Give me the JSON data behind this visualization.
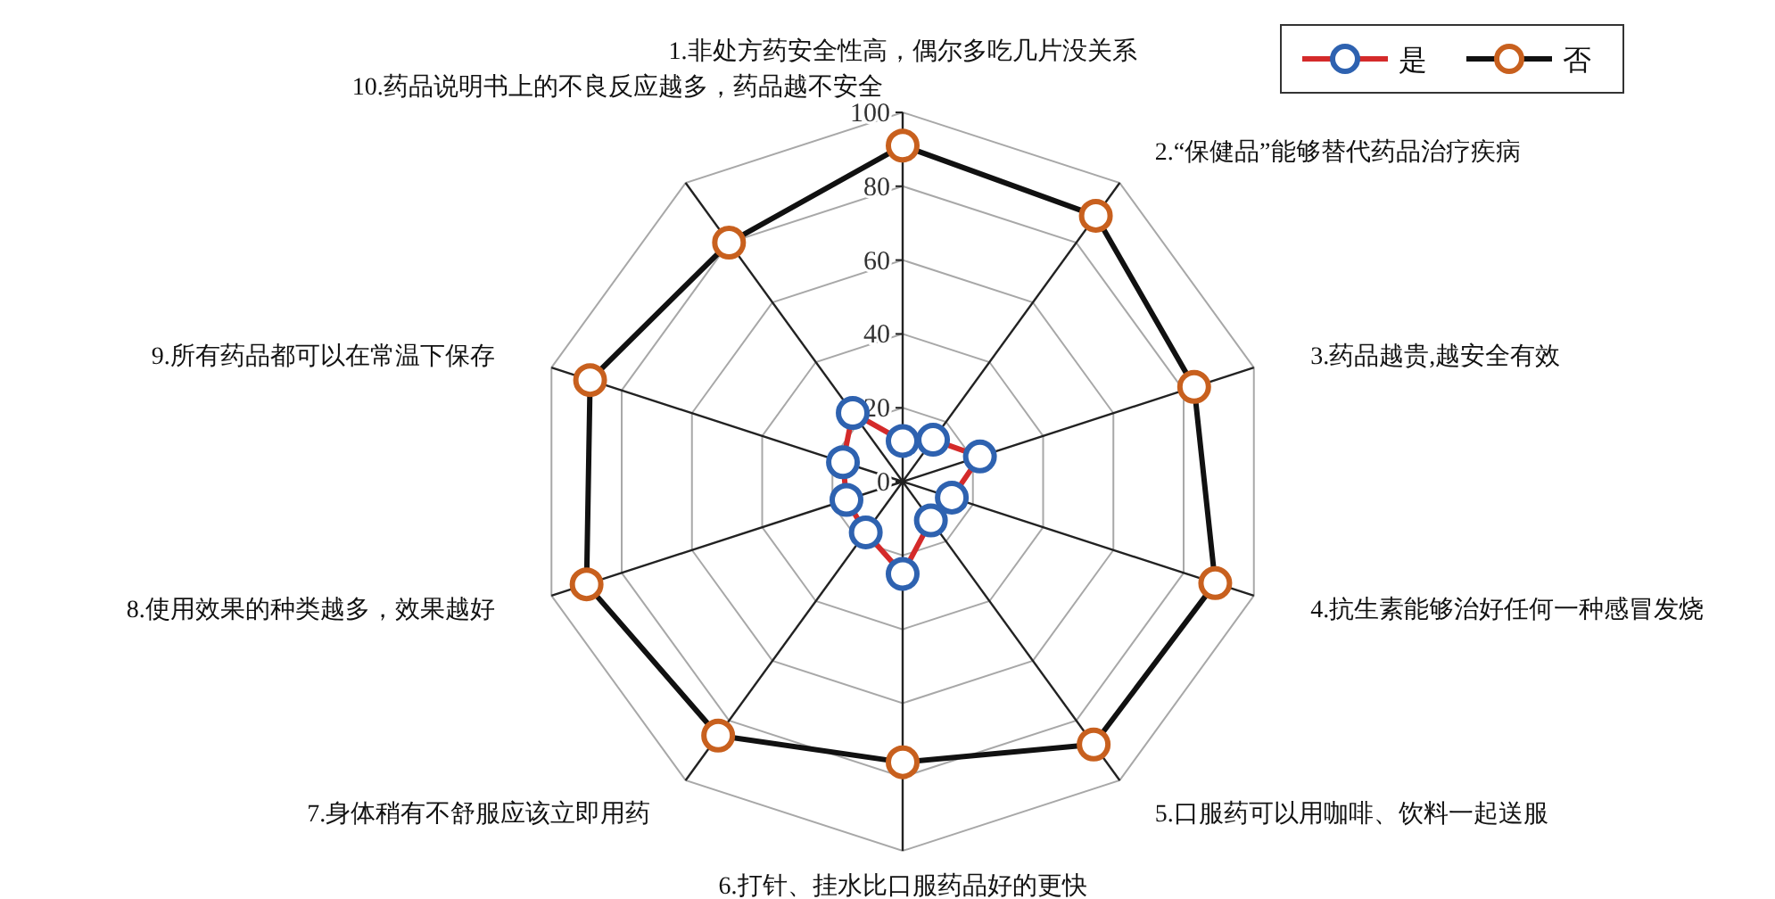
{
  "chart_data": {
    "type": "radar",
    "categories": [
      "1.非处方药安全性高，偶尔多吃几片没关系",
      "2.“保健品”能够替代药品治疗疾病",
      "3.药品越贵,越安全有效",
      "4.抗生素能够治好任何一种感冒发烧",
      "5.口服药可以用咖啡、饮料一起送服",
      "6.打针、挂水比口服药品好的更快",
      "7.身体稍有不舒服应该立即用药",
      "8.使用效果的种类越多，效果越好",
      "9.所有药品都可以在常温下保存",
      "10.药品说明书上的不良反应越多，药品越不安全"
    ],
    "series": [
      {
        "name": "是",
        "color": "#d42a2a",
        "colors": [
          "#2e62b0",
          "#2e62b0",
          "#2e62b0",
          "#2e62b0",
          "#2e62b0",
          "#2e62b0",
          "#2e62b0",
          "#2e62b0",
          "#2e62b0",
          "#2e62b0"
        ],
        "values": [
          11,
          14,
          22,
          14,
          13,
          25,
          17,
          16,
          17,
          23
        ]
      },
      {
        "name": "否",
        "color": "#111111",
        "colors": [
          "#c8601e",
          "#c8601e",
          "#c8601e",
          "#c8601e",
          "#c8601e",
          "#c8601e",
          "#c8601e",
          "#c8601e",
          "#c8601e",
          "#c8601e"
        ],
        "values": [
          91,
          89,
          83,
          89,
          88,
          76,
          85,
          90,
          89,
          80
        ]
      }
    ],
    "ylim": [
      0,
      100
    ],
    "yticks": [
      0,
      20,
      40,
      60,
      80,
      100
    ],
    "grid": true,
    "legend": "top right",
    "marker": "circle",
    "line_style": "solid"
  }
}
